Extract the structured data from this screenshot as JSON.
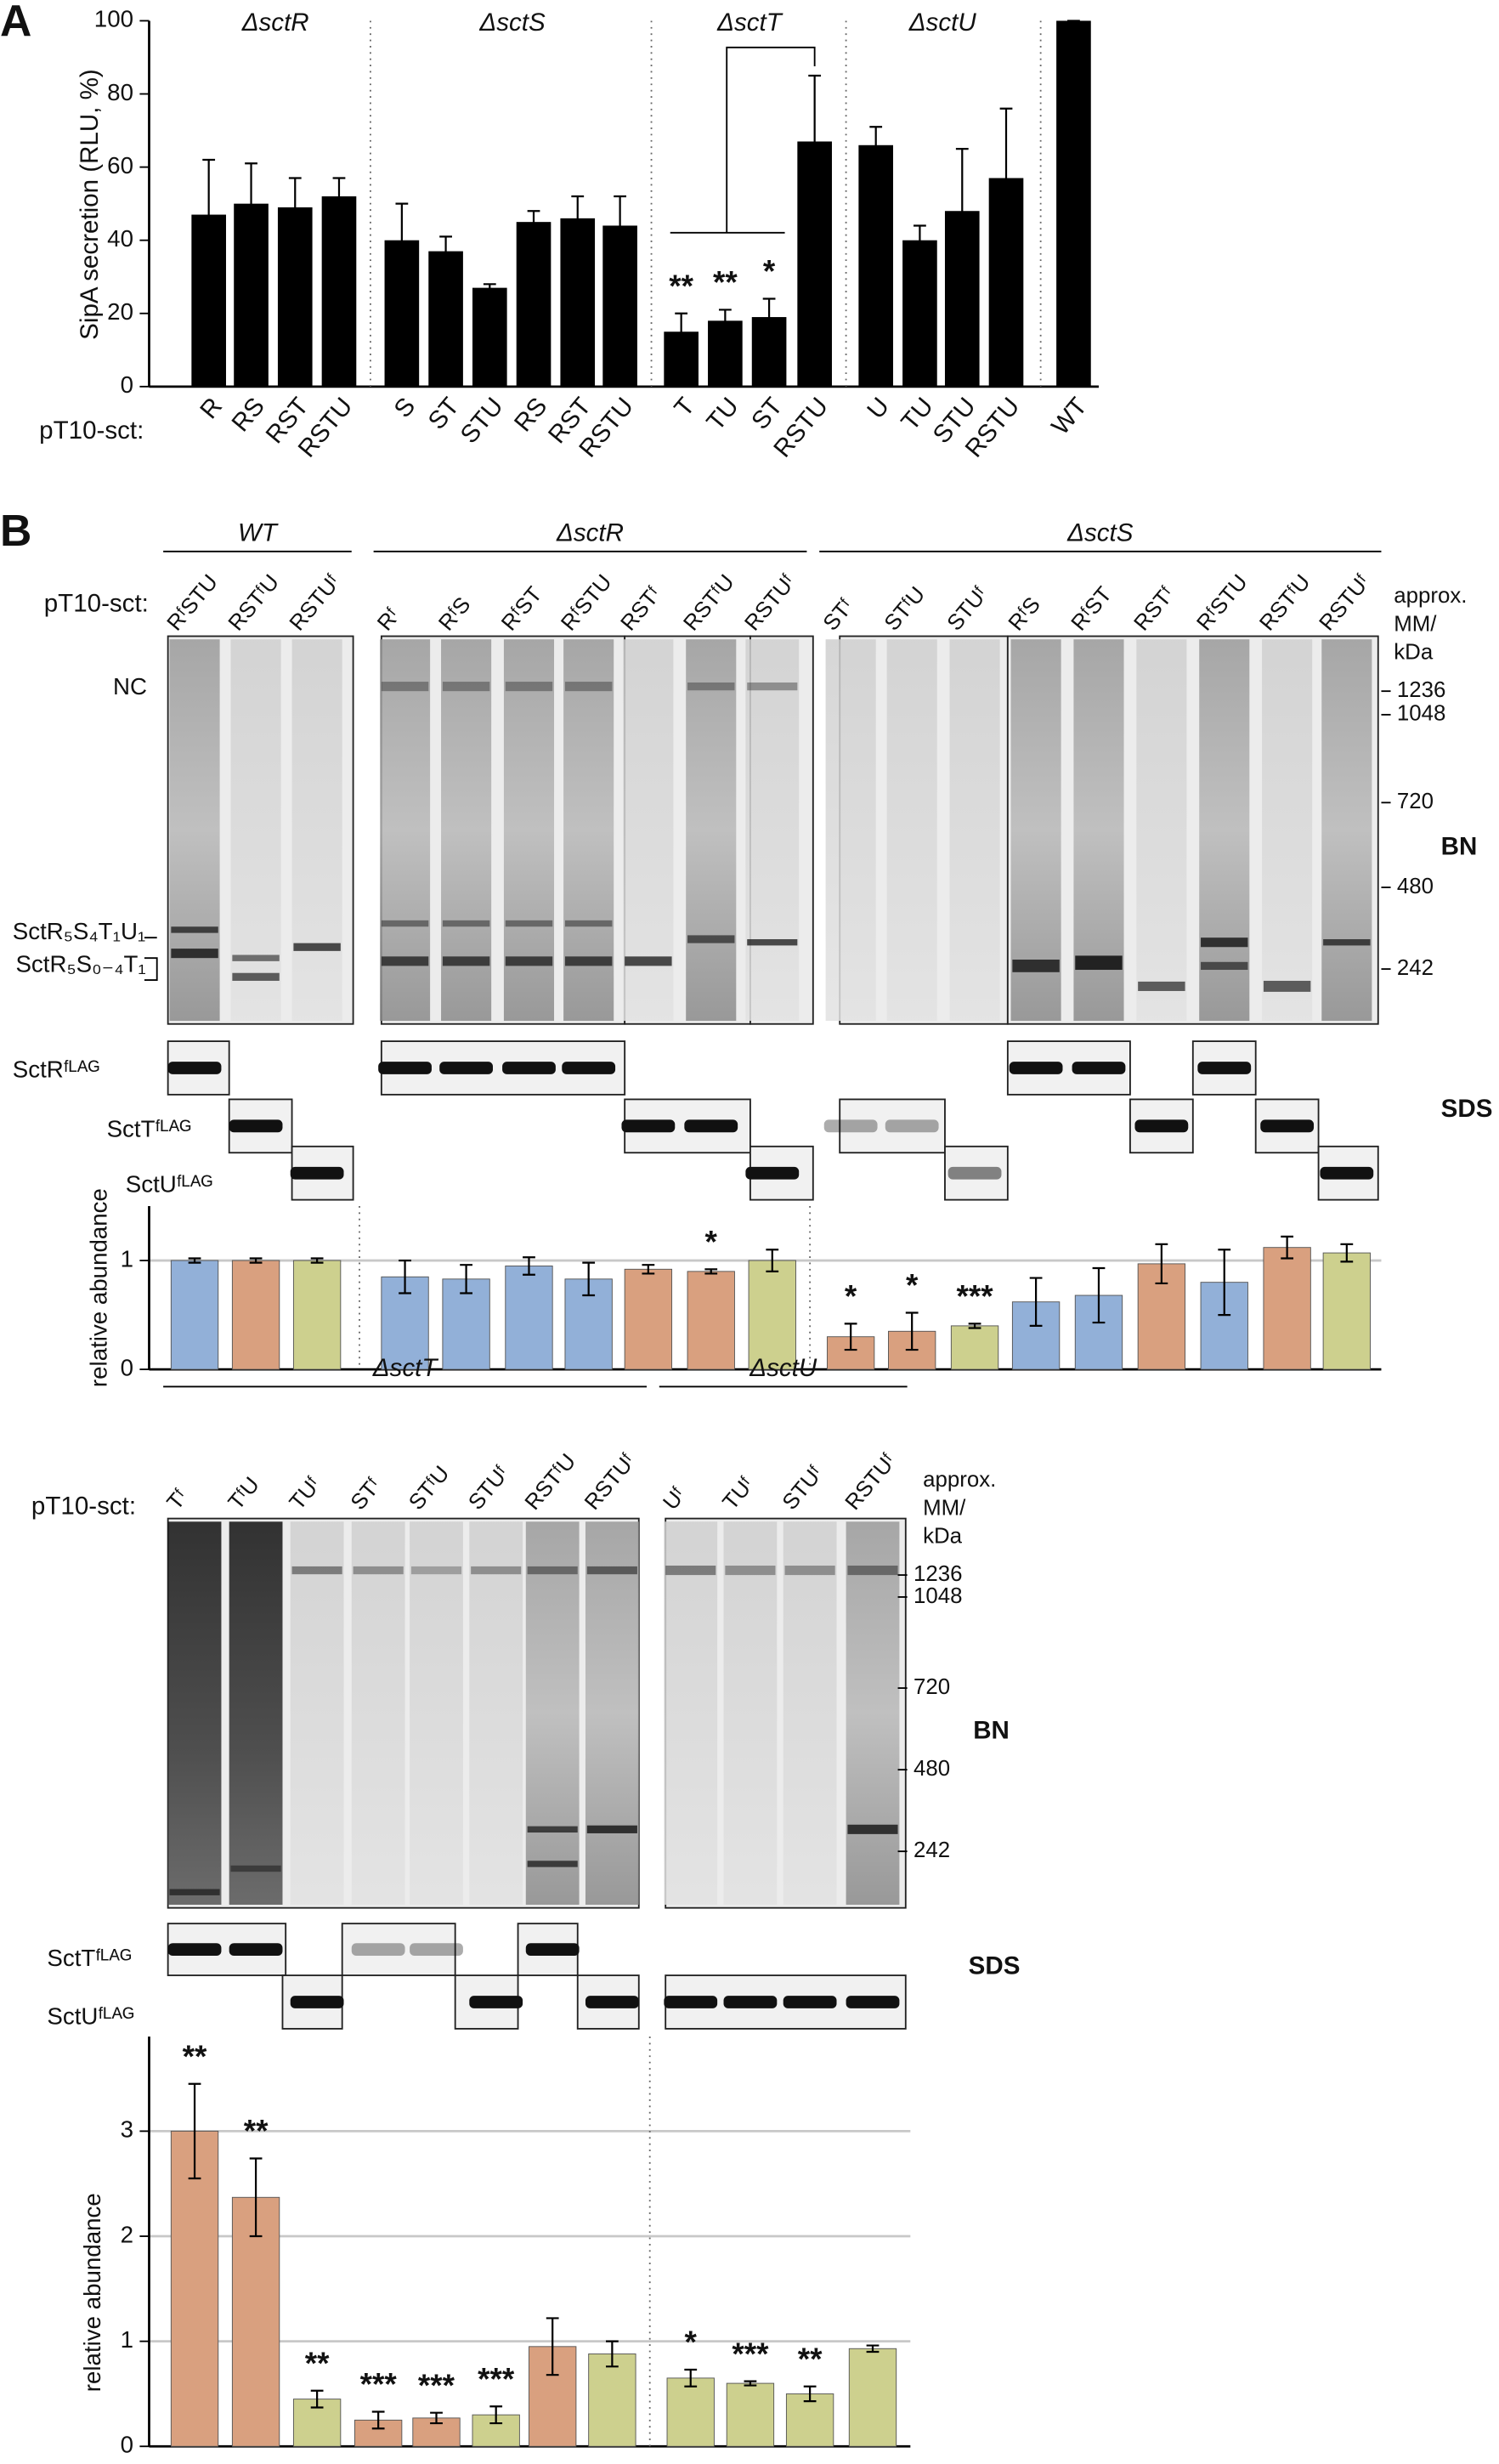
{
  "panels": [
    "A",
    "B"
  ],
  "chart_data": [
    {
      "type": "bar",
      "ylabel": "SipA secretion (RLU, %)",
      "xlabel": "pT10-sct:",
      "ylim": [
        0,
        100
      ],
      "yticks": [
        0,
        20,
        40,
        60,
        80,
        100
      ],
      "grid": false,
      "color": "#000000",
      "groups": [
        {
          "name": "ΔsctR",
          "categories": [
            "R",
            "RS",
            "RST",
            "RSTU"
          ],
          "values": [
            47,
            50,
            49,
            52
          ],
          "errors": [
            15,
            11,
            8,
            5
          ],
          "significance": [
            null,
            null,
            null,
            null
          ]
        },
        {
          "name": "ΔsctS",
          "categories": [
            "S",
            "ST",
            "STU",
            "RS",
            "RST",
            "RSTU"
          ],
          "values": [
            40,
            37,
            27,
            45,
            46,
            44
          ],
          "errors": [
            10,
            4,
            1,
            3,
            6,
            8
          ],
          "significance": [
            null,
            null,
            null,
            null,
            null,
            null
          ]
        },
        {
          "name": "ΔsctT",
          "categories": [
            "T",
            "TU",
            "ST",
            "RSTU"
          ],
          "values": [
            15,
            18,
            19,
            67
          ],
          "errors": [
            5,
            3,
            5,
            18
          ],
          "significance": [
            "**",
            "**",
            "*",
            null
          ]
        },
        {
          "name": "ΔsctU",
          "categories": [
            "U",
            "TU",
            "STU",
            "RSTU"
          ],
          "values": [
            66,
            40,
            48,
            57
          ],
          "errors": [
            5,
            4,
            17,
            19
          ],
          "significance": [
            null,
            null,
            null,
            null
          ]
        },
        {
          "categories": [
            "WT"
          ],
          "values": [
            100
          ],
          "errors": [
            0
          ],
          "significance": [
            null
          ]
        }
      ]
    },
    {
      "type": "bar",
      "ylabel": "relative abundance",
      "xlabel": "pT10-sct:",
      "ylim": [
        0,
        1.5
      ],
      "yticks": [
        0,
        1
      ],
      "grid": true,
      "groups": [
        {
          "name": "WT",
          "categories": [
            "RᶠSTU",
            "RSTᶠU",
            "RSTUᶠ"
          ],
          "values": [
            1,
            1,
            1
          ],
          "errors": [
            0.02,
            0.02,
            0.02
          ],
          "colors": [
            "#92b0d8",
            "#d9a07f",
            "#cdd08e"
          ],
          "significance": [
            null,
            null,
            null
          ]
        },
        {
          "name": "ΔsctR",
          "categories": [
            "Rᶠ",
            "RᶠS",
            "RᶠST",
            "RᶠSTU",
            "RSTᶠ",
            "RSTᶠU",
            "RSTUᶠ"
          ],
          "values": [
            0.85,
            0.83,
            0.95,
            0.83,
            0.92,
            0.9,
            1.0
          ],
          "errors": [
            0.15,
            0.13,
            0.08,
            0.15,
            0.04,
            0.02,
            0.1
          ],
          "colors": [
            "#92b0d8",
            "#92b0d8",
            "#92b0d8",
            "#92b0d8",
            "#d9a07f",
            "#d9a07f",
            "#cdd08e"
          ],
          "significance": [
            null,
            null,
            null,
            null,
            null,
            "*",
            null
          ]
        },
        {
          "name": "ΔsctS",
          "categories": [
            "STᶠ",
            "STᶠU",
            "STUᶠ",
            "RᶠS",
            "RᶠST",
            "RSTᶠ",
            "RᶠSTU",
            "RSTᶠU",
            "RSTUᶠ"
          ],
          "values": [
            0.3,
            0.35,
            0.4,
            0.62,
            0.68,
            0.97,
            0.8,
            1.12,
            1.07
          ],
          "errors": [
            0.12,
            0.17,
            0.02,
            0.22,
            0.25,
            0.18,
            0.3,
            0.1,
            0.08
          ],
          "colors": [
            "#d9a07f",
            "#d9a07f",
            "#cdd08e",
            "#92b0d8",
            "#92b0d8",
            "#d9a07f",
            "#92b0d8",
            "#d9a07f",
            "#cdd08e"
          ],
          "significance": [
            "*",
            "*",
            "***",
            null,
            null,
            null,
            null,
            null,
            null
          ]
        }
      ]
    },
    {
      "type": "bar",
      "ylabel": "relative abundance",
      "xlabel": "pT10-sct:",
      "ylim": [
        0,
        3.9
      ],
      "yticks": [
        0,
        1,
        2,
        3
      ],
      "grid": true,
      "groups": [
        {
          "name": "ΔsctT",
          "categories": [
            "Tᶠ",
            "TᶠU",
            "TUᶠ",
            "STᶠ",
            "STᶠU",
            "STUᶠ",
            "RSTᶠU",
            "RSTUᶠ"
          ],
          "values": [
            3.0,
            2.37,
            0.45,
            0.25,
            0.27,
            0.3,
            0.95,
            0.88
          ],
          "errors": [
            0.45,
            0.37,
            0.08,
            0.08,
            0.05,
            0.08,
            0.27,
            0.12
          ],
          "colors": [
            "#d9a07f",
            "#d9a07f",
            "#cdd08e",
            "#d9a07f",
            "#d9a07f",
            "#cdd08e",
            "#d9a07f",
            "#cdd08e"
          ],
          "significance": [
            "**",
            "**",
            "**",
            "***",
            "***",
            "***",
            null,
            null
          ]
        },
        {
          "name": "ΔsctU",
          "categories": [
            "Uᶠ",
            "TUᶠ",
            "STUᶠ",
            "RSTUᶠ"
          ],
          "values": [
            0.65,
            0.6,
            0.5,
            0.93
          ],
          "errors": [
            0.08,
            0.02,
            0.07,
            0.03
          ],
          "colors": [
            "#cdd08e",
            "#cdd08e",
            "#cdd08e",
            "#cdd08e"
          ],
          "significance": [
            "*",
            "***",
            "**",
            null
          ]
        }
      ]
    }
  ],
  "gels": [
    {
      "markers_title": [
        "approx.",
        "MM/",
        "kDa"
      ],
      "markers": [
        1236,
        1048,
        720,
        480,
        242
      ],
      "bn_label": "BN",
      "sds_label": "SDS",
      "band_labels": [
        "NC",
        "SctR₅S₄T₁U₁",
        "SctR₅S₀₋₄T₁"
      ],
      "sds_rows": [
        "SctRᶠᴸᴬᴳ",
        "SctTᶠᴸᴬᴳ",
        "SctUᶠᴸᴬᴳ"
      ]
    },
    {
      "markers_title": [
        "approx.",
        "MM/",
        "kDa"
      ],
      "markers": [
        1236,
        1048,
        720,
        480,
        242
      ],
      "bn_label": "BN",
      "sds_label": "SDS",
      "sds_rows": [
        "SctTᶠᴸᴬᴳ",
        "SctUᶠᴸᴬᴳ"
      ]
    }
  ]
}
